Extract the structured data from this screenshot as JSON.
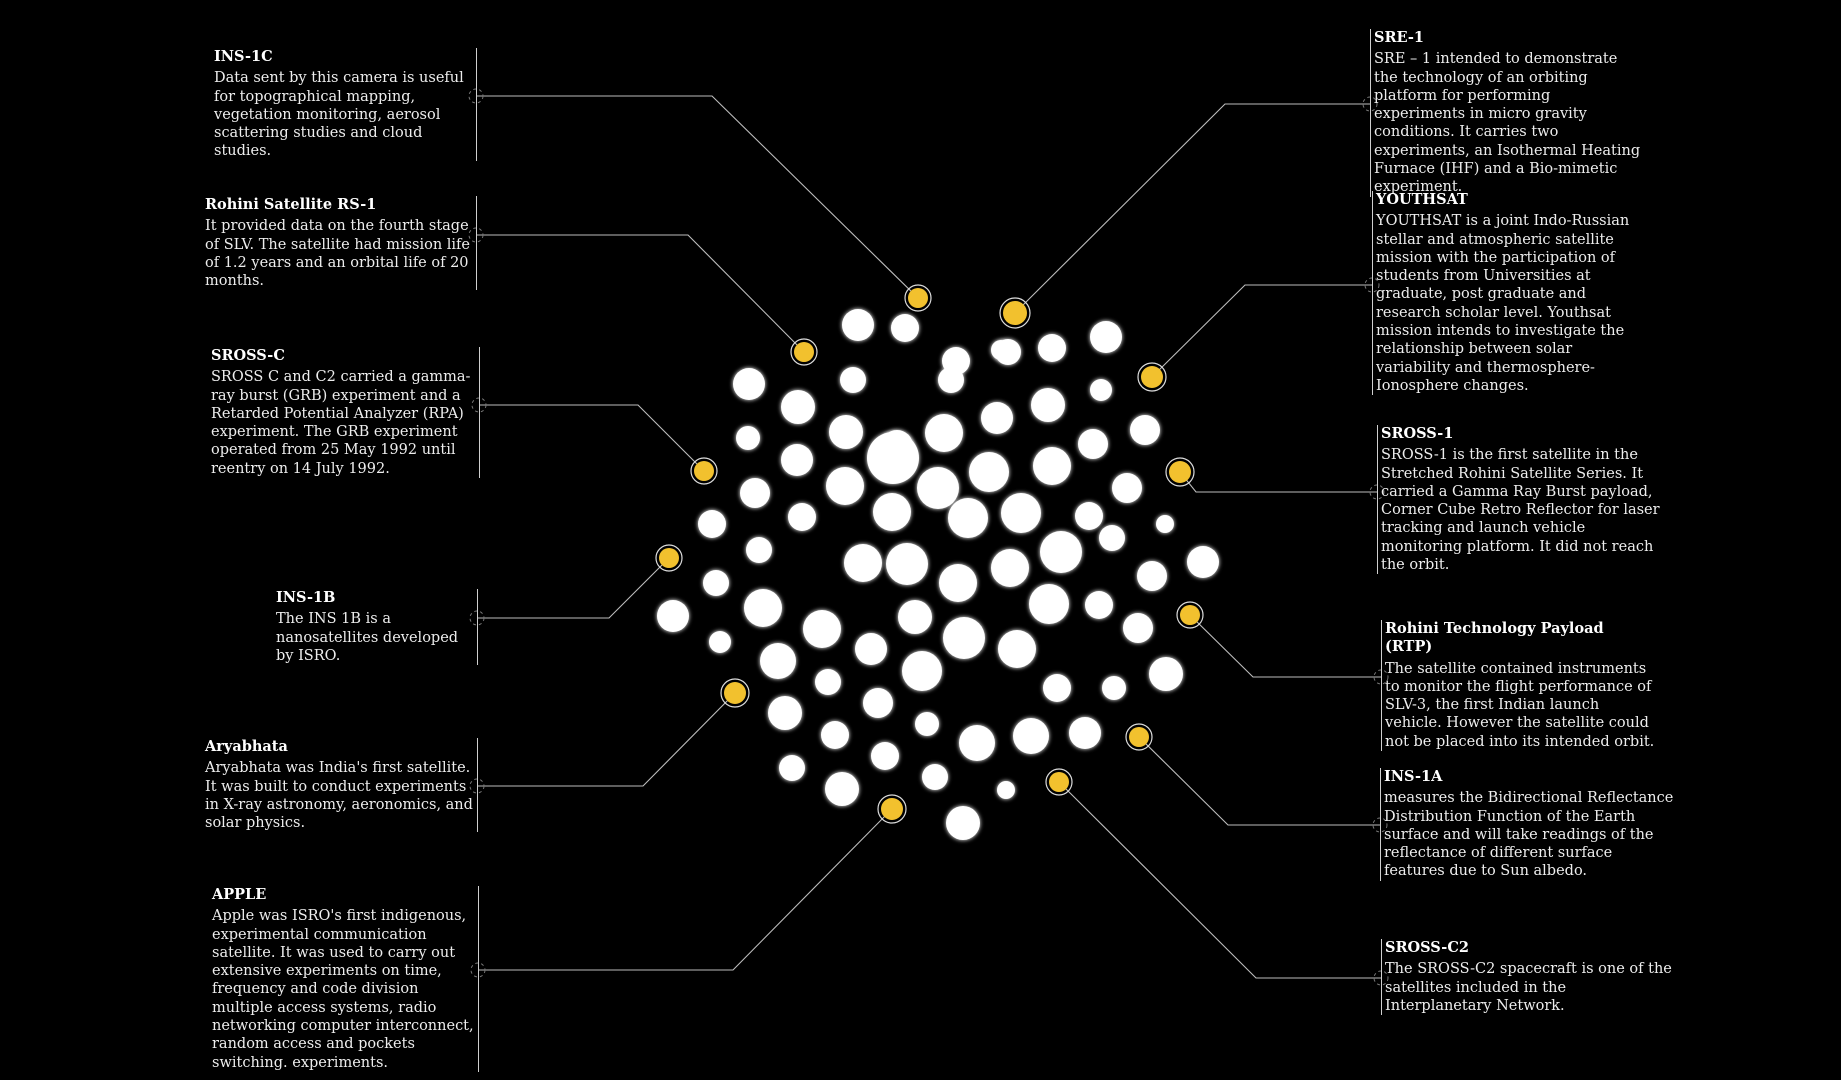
{
  "diagram": {
    "highlight_color": "#f2c12e",
    "dot_color": "#ffffff",
    "line_color": "#bdbdbd",
    "background": "#000000"
  },
  "annotations": [
    {
      "id": "ins-1c",
      "title": "INS-1C",
      "body": "Data sent by this camera is useful for topographical mapping, vegetation monitoring, aerosol scattering studies and cloud studies."
    },
    {
      "id": "rohini-rs1",
      "title": "Rohini Satellite RS-1",
      "body": "It provided data on the fourth stage of SLV. The satellite had mission life of 1.2 years and an orbital life of 20 months."
    },
    {
      "id": "sross-c",
      "title": "SROSS-C",
      "body": "SROSS C and C2 carried a gamma-ray burst (GRB) experiment and a Retarded Potential Analyzer (RPA) experiment. The GRB experiment operated from 25 May 1992 until reentry on 14 July 1992."
    },
    {
      "id": "ins-1b",
      "title": "INS-1B",
      "body": "The INS 1B is a nanosatellites developed by ISRO."
    },
    {
      "id": "aryabhata",
      "title": "Aryabhata",
      "body": "Aryabhata was India's first satellite. It was built to conduct experiments in X-ray astronomy, aeronomics, and solar physics."
    },
    {
      "id": "apple",
      "title": "APPLE",
      "body": "Apple was ISRO's first indigenous, experimental communication satellite. It was used to carry out extensive experiments on time, frequency and code division multiple access systems, radio networking computer interconnect, random access and pockets switching. experiments."
    },
    {
      "id": "sre-1",
      "title": "SRE-1",
      "body": "SRE – 1 intended to demonstrate the technology of an orbiting platform for performing experiments in micro gravity conditions. It carries two experiments, an Isothermal Heating Furnace (IHF) and a Bio-mimetic experiment."
    },
    {
      "id": "youthsat",
      "title": "YOUTHSAT",
      "body": "YOUTHSAT is a joint Indo-Russian stellar and atmospheric satellite mission with the participation of students from Universities at graduate, post graduate and research scholar level. Youthsat mission intends to investigate the relationship between solar variability and thermosphere-Ionosphere changes."
    },
    {
      "id": "sross-1",
      "title": "SROSS-1",
      "body": "SROSS-1 is the first satellite in the Stretched Rohini Satellite Series. It carried a Gamma Ray Burst payload, Corner Cube Retro Reflector for laser tracking and launch vehicle monitoring platform. It did not reach the orbit."
    },
    {
      "id": "rtp",
      "title": "Rohini Technology Payload (RTP)",
      "body": "The satellite contained instruments to monitor the flight performance of SLV-3, the first Indian launch vehicle. However the satellite could not be placed into its intended orbit."
    },
    {
      "id": "ins-1a",
      "title": "INS-1A",
      "body": "measures the Bidirectional Reflectance Distribution Function of the Earth surface and will take readings of the reflectance of different surface features due to Sun albedo."
    },
    {
      "id": "sross-c2",
      "title": "SROSS-C2",
      "body": "The SROSS-C2 spacecraft is one of the satellites included in the Interplanetary Network."
    }
  ]
}
